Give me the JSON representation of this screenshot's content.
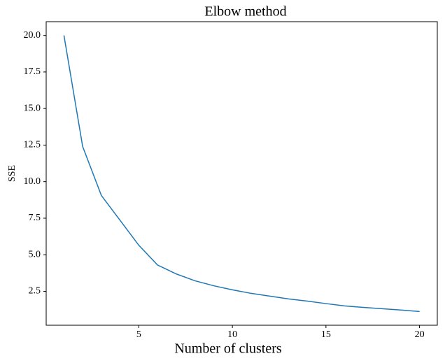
{
  "chart_data": {
    "type": "line",
    "title": "Elbow method",
    "xlabel": "Number of clusters",
    "ylabel": "SSE",
    "x": [
      1,
      2,
      3,
      4,
      5,
      6,
      7,
      8,
      9,
      10,
      11,
      12,
      13,
      14,
      15,
      16,
      17,
      18,
      19,
      20
    ],
    "series": [
      {
        "color": "#1f77b4",
        "values": [
          20.0,
          12.4,
          9.05,
          7.35,
          5.65,
          4.3,
          3.69,
          3.22,
          2.88,
          2.6,
          2.36,
          2.17,
          1.98,
          1.83,
          1.66,
          1.5,
          1.4,
          1.31,
          1.22,
          1.12
        ]
      }
    ],
    "xlim": [
      0.05,
      20.95
    ],
    "ylim": [
      0.18,
      20.94
    ],
    "xticks": [
      5,
      10,
      15,
      20
    ],
    "yticks": [
      {
        "value": 2.5,
        "label": "2.5"
      },
      {
        "value": 5,
        "label": "5.0"
      },
      {
        "value": 7.5,
        "label": "7.5"
      },
      {
        "value": 10,
        "label": "10.0"
      },
      {
        "value": 12.5,
        "label": "12.5"
      },
      {
        "value": 15,
        "label": "15.0"
      },
      {
        "value": 17.5,
        "label": "17.5"
      },
      {
        "value": 20,
        "label": "20.0"
      }
    ],
    "grid": false
  }
}
